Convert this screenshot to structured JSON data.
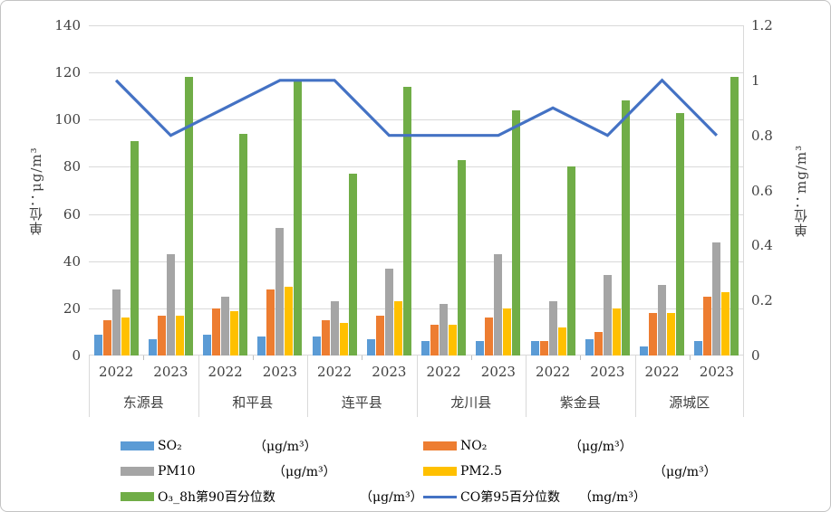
{
  "chart_data": {
    "type": "bar+line combo",
    "regions": [
      "东源县",
      "和平县",
      "连平县",
      "龙川县",
      "紫金县",
      "源城区"
    ],
    "years": [
      "2022",
      "2023"
    ],
    "categories": [
      "东源县 2022",
      "东源县 2023",
      "和平县 2022",
      "和平县 2023",
      "连平县 2022",
      "连平县 2023",
      "龙川县 2022",
      "龙川县 2023",
      "紫金县 2022",
      "紫金县 2023",
      "源城区 2022",
      "源城区 2023"
    ],
    "series": [
      {
        "key": "so2",
        "name": "SO₂",
        "unit": "（μg/m³）",
        "type": "bar",
        "color": "#5b9bd5",
        "axis": "left",
        "values": [
          9,
          7,
          9,
          8,
          8,
          7,
          6,
          6,
          6,
          7,
          4,
          6
        ]
      },
      {
        "key": "no2",
        "name": "NO₂",
        "unit": "（μg/m³）",
        "type": "bar",
        "color": "#ed7d31",
        "axis": "left",
        "values": [
          15,
          17,
          20,
          28,
          15,
          17,
          13,
          16,
          6,
          10,
          18,
          25
        ]
      },
      {
        "key": "pm10",
        "name": "PM10",
        "unit": "（μg/m³）",
        "type": "bar",
        "color": "#a5a5a5",
        "axis": "left",
        "values": [
          28,
          43,
          25,
          54,
          23,
          37,
          22,
          43,
          23,
          34,
          30,
          48
        ]
      },
      {
        "key": "pm25",
        "name": "PM2.5",
        "unit": "（μg/m³）",
        "type": "bar",
        "color": "#ffc000",
        "axis": "left",
        "values": [
          16,
          17,
          19,
          29,
          14,
          23,
          13,
          20,
          12,
          20,
          18,
          27
        ]
      },
      {
        "key": "o3",
        "name": "O₃_8h第90百分位数",
        "unit": "（μg/m³）",
        "type": "bar",
        "color": "#70ad47",
        "axis": "left",
        "values": [
          91,
          118,
          94,
          117,
          77,
          114,
          83,
          104,
          80,
          108,
          103,
          118
        ]
      },
      {
        "key": "co",
        "name": "CO第95百分位数",
        "unit": "（mg/m³）",
        "type": "line",
        "color": "#4472c4",
        "axis": "right",
        "values": [
          1.0,
          0.8,
          0.9,
          1.0,
          1.0,
          0.8,
          0.8,
          0.8,
          0.9,
          0.8,
          1.0,
          0.8
        ]
      }
    ],
    "left_axis": {
      "title": "单位：μg/m³",
      "min": 0,
      "max": 140,
      "ticks": [
        0,
        20,
        40,
        60,
        80,
        100,
        120,
        140
      ]
    },
    "right_axis": {
      "title": "单位：mg/m³",
      "min": 0,
      "max": 1.2,
      "ticks": [
        0,
        0.2,
        0.4,
        0.6,
        0.8,
        1,
        1.2
      ]
    },
    "grid": "horizontal gridlines on",
    "legend_position": "bottom, two columns"
  },
  "colors": {
    "gridline": "#d9d9d9",
    "text": "#404040",
    "frame_border": "#c3c3c3"
  }
}
